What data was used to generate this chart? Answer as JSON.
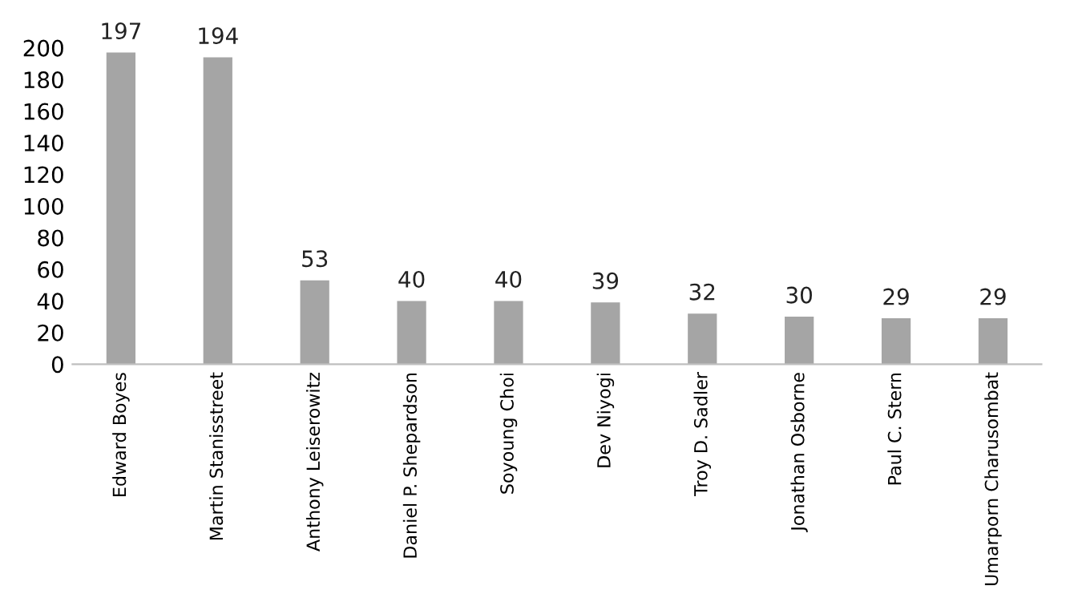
{
  "chart_data": {
    "type": "bar",
    "categories": [
      "Edward Boyes",
      "Martin Stanisstreet",
      "Anthony Leiserowitz",
      "Daniel P. Shepardson",
      "Soyoung Choi",
      "Dev Niyogi",
      "Troy D. Sadler",
      "Jonathan Osborne",
      "Paul C. Stern",
      "Umarporn Charusombat"
    ],
    "values": [
      197,
      194,
      53,
      40,
      40,
      39,
      32,
      30,
      29,
      29
    ],
    "color": "#a5a5a5",
    "ylim": [
      0,
      200
    ],
    "yticks": [
      0,
      20,
      40,
      60,
      80,
      100,
      120,
      140,
      160,
      180,
      200
    ],
    "data_labels": true,
    "grid": false
  }
}
